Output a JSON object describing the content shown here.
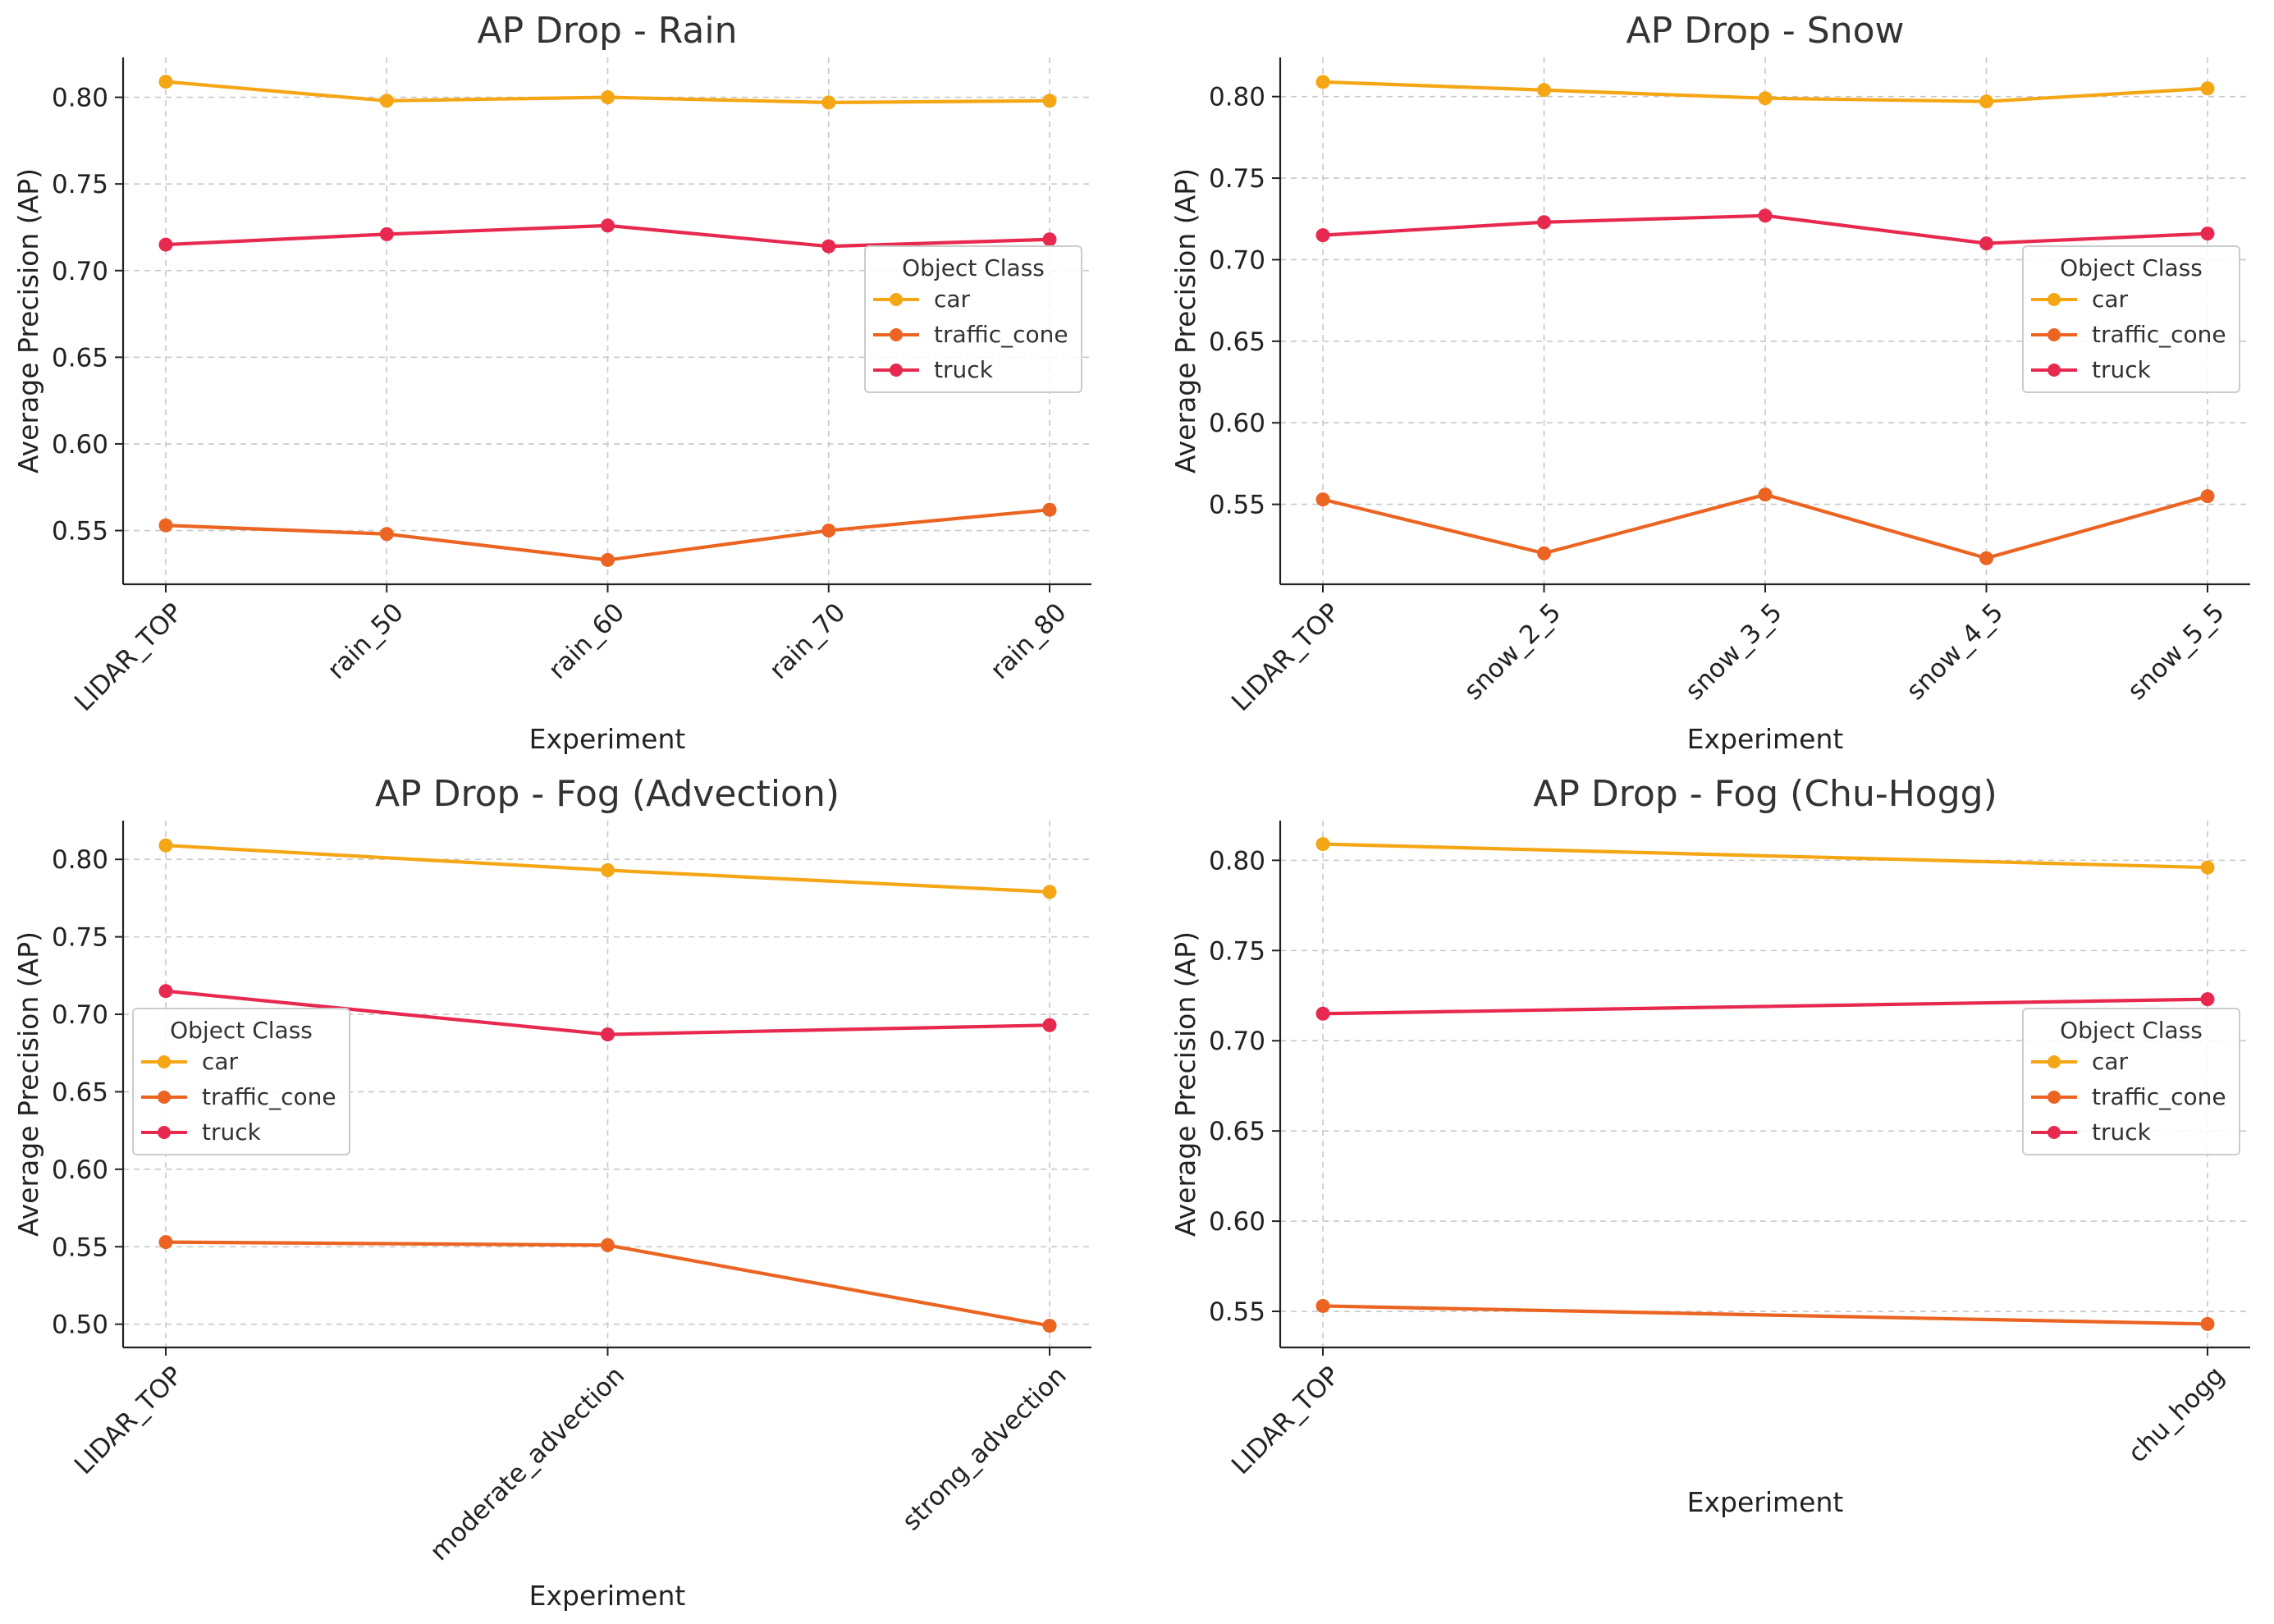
{
  "legend_title": "Object Class",
  "colors": {
    "car": "#F5A614",
    "traffic_cone": "#EB6421",
    "truck": "#E8294F"
  },
  "chart_data": [
    {
      "type": "line",
      "title": "AP Drop - Rain",
      "xlabel": "Experiment",
      "ylabel": "Average Precision (AP)",
      "categories": [
        "LIDAR_TOP",
        "rain_50",
        "rain_60",
        "rain_70",
        "rain_80"
      ],
      "ylim": [
        0.519,
        0.823
      ],
      "yticks": [
        0.55,
        0.6,
        0.65,
        0.7,
        0.75,
        0.8
      ],
      "grid": true,
      "legend_position": "center-right",
      "series": [
        {
          "name": "car",
          "values": [
            0.809,
            0.798,
            0.8,
            0.797,
            0.798
          ]
        },
        {
          "name": "traffic_cone",
          "values": [
            0.553,
            0.548,
            0.533,
            0.55,
            0.562
          ]
        },
        {
          "name": "truck",
          "values": [
            0.715,
            0.721,
            0.726,
            0.714,
            0.718
          ]
        }
      ]
    },
    {
      "type": "line",
      "title": "AP Drop - Snow",
      "xlabel": "Experiment",
      "ylabel": "Average Precision (AP)",
      "categories": [
        "LIDAR_TOP",
        "snow_2_5",
        "snow_3_5",
        "snow_4_5",
        "snow_5_5"
      ],
      "ylim": [
        0.501,
        0.824
      ],
      "yticks": [
        0.55,
        0.6,
        0.65,
        0.7,
        0.75,
        0.8
      ],
      "grid": true,
      "legend_position": "center-right",
      "series": [
        {
          "name": "car",
          "values": [
            0.809,
            0.804,
            0.799,
            0.797,
            0.805
          ]
        },
        {
          "name": "traffic_cone",
          "values": [
            0.553,
            0.52,
            0.556,
            0.517,
            0.555
          ]
        },
        {
          "name": "truck",
          "values": [
            0.715,
            0.723,
            0.727,
            0.71,
            0.716
          ]
        }
      ]
    },
    {
      "type": "line",
      "title": "AP Drop - Fog (Advection)",
      "xlabel": "Experiment",
      "ylabel": "Average Precision (AP)",
      "categories": [
        "LIDAR_TOP",
        "moderate_advection",
        "strong_advection"
      ],
      "ylim": [
        0.485,
        0.825
      ],
      "yticks": [
        0.5,
        0.55,
        0.6,
        0.65,
        0.7,
        0.75,
        0.8
      ],
      "grid": true,
      "legend_position": "center-left",
      "series": [
        {
          "name": "car",
          "values": [
            0.809,
            0.793,
            0.779
          ]
        },
        {
          "name": "traffic_cone",
          "values": [
            0.553,
            0.551,
            0.499
          ]
        },
        {
          "name": "truck",
          "values": [
            0.715,
            0.687,
            0.693
          ]
        }
      ]
    },
    {
      "type": "line",
      "title": "AP Drop - Fog (Chu-Hogg)",
      "xlabel": "Experiment",
      "ylabel": "Average Precision (AP)",
      "categories": [
        "LIDAR_TOP",
        "chu_hogg"
      ],
      "ylim": [
        0.53,
        0.822
      ],
      "yticks": [
        0.55,
        0.6,
        0.65,
        0.7,
        0.75,
        0.8
      ],
      "grid": true,
      "legend_position": "center-right",
      "series": [
        {
          "name": "car",
          "values": [
            0.809,
            0.796
          ]
        },
        {
          "name": "traffic_cone",
          "values": [
            0.553,
            0.543
          ]
        },
        {
          "name": "truck",
          "values": [
            0.715,
            0.723
          ]
        }
      ]
    }
  ]
}
